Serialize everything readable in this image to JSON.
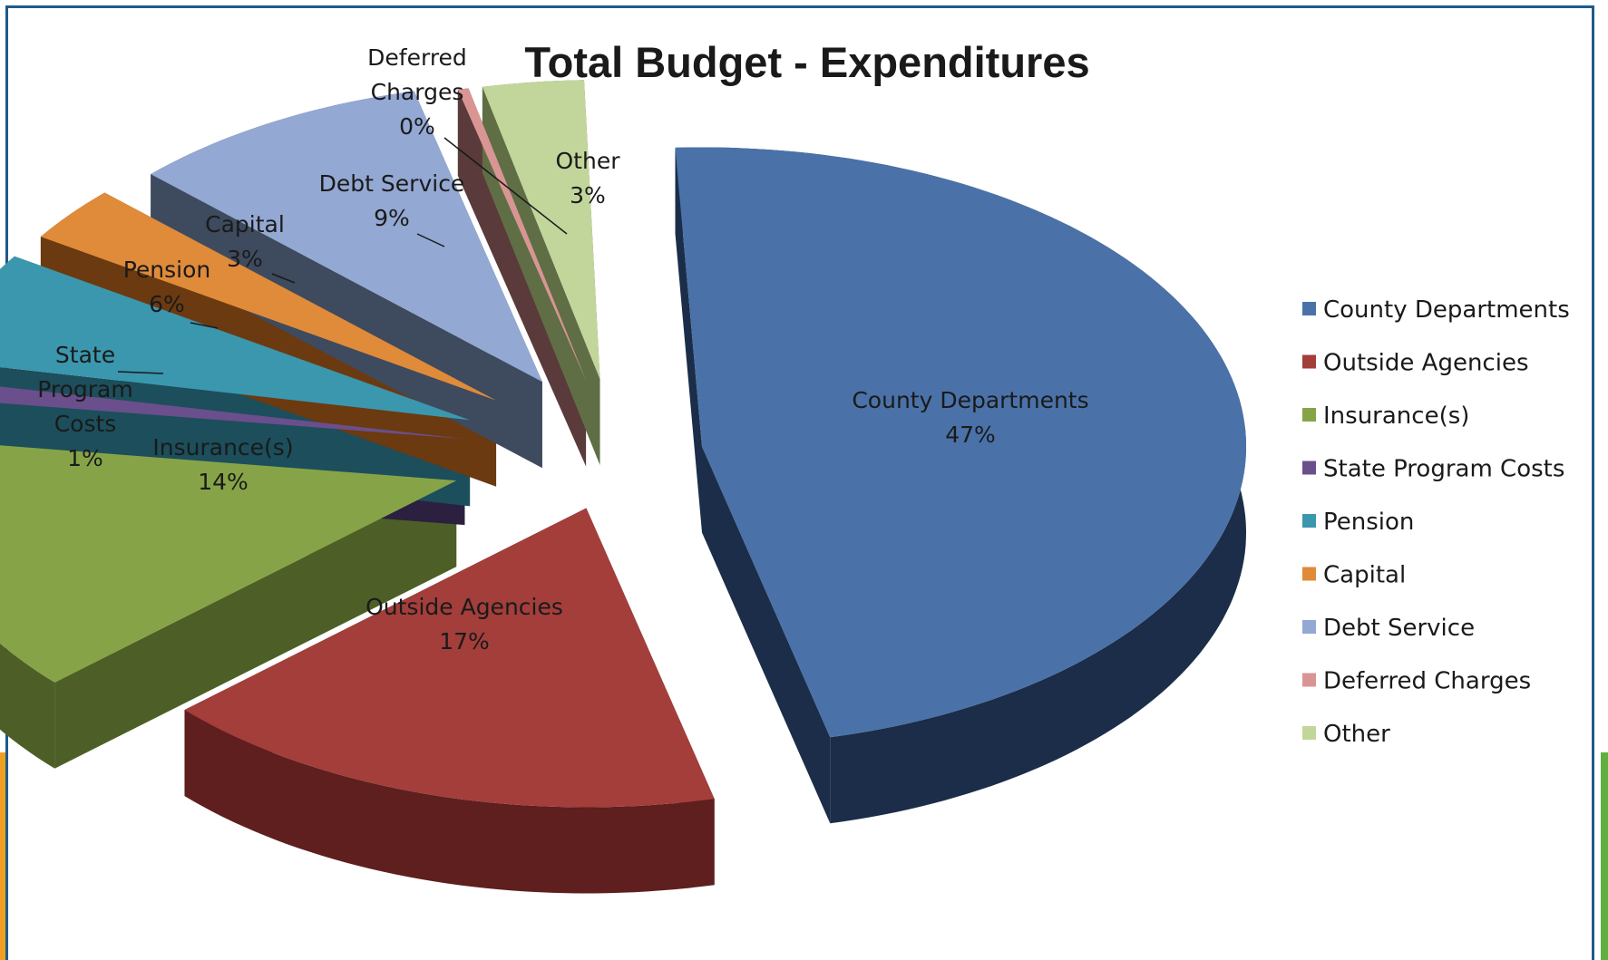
{
  "chart_data": {
    "type": "pie",
    "title": "Total Budget - Expenditures",
    "legend_position": "right",
    "slices": [
      {
        "name": "County Departments",
        "percent": 47,
        "label": "47%",
        "color": "#4a72a8",
        "side_color": "#1b2d48"
      },
      {
        "name": "Outside Agencies",
        "percent": 17,
        "label": "17%",
        "color": "#a33e3b",
        "side_color": "#5e1f1e"
      },
      {
        "name": "Insurance(s)",
        "percent": 14,
        "label": "14%",
        "color": "#86a447",
        "side_color": "#4d5f26"
      },
      {
        "name": "State Program Costs",
        "percent": 1,
        "label": "1%",
        "color": "#6a4f8c",
        "side_color": "#2c2040"
      },
      {
        "name": "Pension",
        "percent": 6,
        "label": "6%",
        "color": "#3b97ad",
        "side_color": "#1c4e5c"
      },
      {
        "name": "Capital",
        "percent": 3,
        "label": "3%",
        "color": "#df8b3a",
        "side_color": "#6b3a10"
      },
      {
        "name": "Debt Service",
        "percent": 9,
        "label": "9%",
        "color": "#93a8d2",
        "side_color": "#3e4a5e"
      },
      {
        "name": "Deferred Charges",
        "percent": 0,
        "label": "0%",
        "color": "#d99594",
        "side_color": "#5a3a3a"
      },
      {
        "name": "Other",
        "percent": 3,
        "label": "3%",
        "color": "#c2d69b",
        "side_color": "#5f6e45"
      }
    ],
    "data_labels": [
      {
        "lines": [
          "County Departments",
          "47%"
        ]
      },
      {
        "lines": [
          "Outside Agencies",
          "17%"
        ]
      },
      {
        "lines": [
          "Insurance(s)",
          "14%"
        ]
      },
      {
        "lines": [
          "State",
          "Program",
          "Costs",
          "1%"
        ]
      },
      {
        "lines": [
          "Pension",
          "6%"
        ]
      },
      {
        "lines": [
          "Capital",
          "3%"
        ]
      },
      {
        "lines": [
          "Debt Service",
          "9%"
        ]
      },
      {
        "lines": [
          "Deferred",
          "Charges",
          "0%"
        ]
      },
      {
        "lines": [
          "Other",
          "3%"
        ]
      }
    ],
    "legend": [
      "County Departments",
      "Outside Agencies",
      "Insurance(s)",
      "State Program Costs",
      "Pension",
      "Capital",
      "Debt Service",
      "Deferred Charges",
      "Other"
    ]
  }
}
